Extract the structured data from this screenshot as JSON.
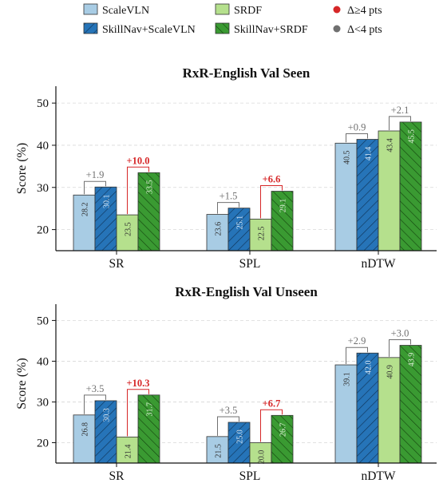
{
  "legend": {
    "items": [
      {
        "label": "ScaleVLN",
        "kind": "swatch",
        "color": "#a8cce4",
        "hatch": false
      },
      {
        "label": "SRDF",
        "kind": "swatch",
        "color": "#b5e08d",
        "hatch": false
      },
      {
        "label": "Δ≥4 pts",
        "kind": "dot",
        "color": "#d62728"
      },
      {
        "label": "SkillNav+ScaleVLN",
        "kind": "swatch",
        "color": "#2674b8",
        "hatch": true
      },
      {
        "label": "SkillNav+SRDF",
        "kind": "swatch",
        "color": "#3a9a32",
        "hatch": true
      },
      {
        "label": "Δ<4 pts",
        "kind": "dot",
        "color": "#707070"
      }
    ]
  },
  "colors": {
    "scalevln": "#a8cce4",
    "skillnav_scalevln": "#2674b8",
    "srdf": "#b5e08d",
    "skillnav_srdf": "#3a9a32",
    "delta_big": "#d62728",
    "delta_small": "#707070",
    "grid": "#d8d8d8"
  },
  "chart_data": [
    {
      "type": "bar",
      "title": "RxR-English Val Seen",
      "ylabel": "Score (%)",
      "ylim": [
        15,
        54
      ],
      "yticks": [
        20,
        30,
        40,
        50
      ],
      "grid": true,
      "categories": [
        "SR",
        "SPL",
        "nDTW"
      ],
      "series": [
        {
          "name": "ScaleVLN",
          "values": [
            28.2,
            23.6,
            40.5
          ]
        },
        {
          "name": "SkillNav+ScaleVLN",
          "values": [
            30.1,
            25.1,
            41.4
          ]
        },
        {
          "name": "SRDF",
          "values": [
            23.5,
            22.5,
            43.4
          ]
        },
        {
          "name": "SkillNav+SRDF",
          "values": [
            33.5,
            29.1,
            45.5
          ]
        }
      ],
      "value_labels": [
        [
          "28.2",
          "23.6",
          "40.5"
        ],
        [
          "30.1",
          "25.1",
          "41.4"
        ],
        [
          "23.5",
          "22.5",
          "43.4"
        ],
        [
          "33.5",
          "29.1",
          "45.5"
        ]
      ],
      "deltas": [
        {
          "scalevln": "+1.9",
          "srdf": "+10.0"
        },
        {
          "scalevln": "+1.5",
          "srdf": "+6.6"
        },
        {
          "scalevln": "+0.9",
          "srdf": "+2.1"
        }
      ]
    },
    {
      "type": "bar",
      "title": "RxR-English Val Unseen",
      "ylabel": "Score (%)",
      "ylim": [
        15,
        54
      ],
      "yticks": [
        20,
        30,
        40,
        50
      ],
      "grid": true,
      "categories": [
        "SR",
        "SPL",
        "nDTW"
      ],
      "series": [
        {
          "name": "ScaleVLN",
          "values": [
            26.8,
            21.5,
            39.1
          ]
        },
        {
          "name": "SkillNav+ScaleVLN",
          "values": [
            30.3,
            25.0,
            42.0
          ]
        },
        {
          "name": "SRDF",
          "values": [
            21.4,
            20.0,
            40.9
          ]
        },
        {
          "name": "SkillNav+SRDF",
          "values": [
            31.7,
            26.7,
            43.9
          ]
        }
      ],
      "value_labels": [
        [
          "26.8",
          "21.5",
          "39.1"
        ],
        [
          "30.3",
          "25.0",
          "42.0"
        ],
        [
          "21.4",
          "20.0",
          "40.9"
        ],
        [
          "31.7",
          "26.7",
          "43.9"
        ]
      ],
      "deltas": [
        {
          "scalevln": "+3.5",
          "srdf": "+10.3"
        },
        {
          "scalevln": "+3.5",
          "srdf": "+6.7"
        },
        {
          "scalevln": "+2.9",
          "srdf": "+3.0"
        }
      ]
    }
  ]
}
